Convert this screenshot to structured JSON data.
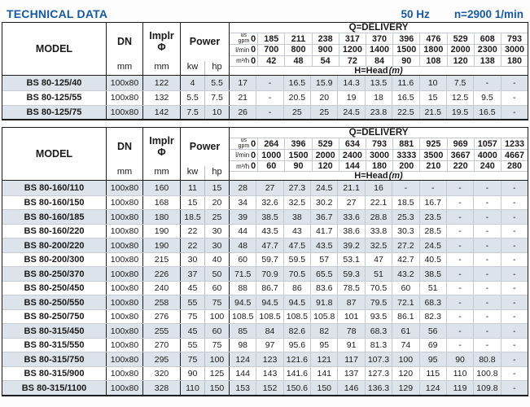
{
  "page": {
    "title": "TECHNICAL DATA",
    "frequency": "50 Hz",
    "speed": "n=2900 1/min"
  },
  "labels": {
    "model": "MODEL",
    "dn": "DN",
    "mm": "mm",
    "implr": "Implr",
    "implr_phi": "Φ",
    "power": "Power",
    "kw": "kw",
    "hp": "hp",
    "q_delivery": "Q=DELIVERY",
    "h_head": "H=Head",
    "h_head_unit": "(m)",
    "gpm_top": "us",
    "gpm_bottom": "gpm",
    "lmin": "l/min",
    "m3h": "m³/h"
  },
  "colors": {
    "accent_blue": "#1459a8",
    "row_shade": "#dce3ea",
    "border_dark": "#1c1c1c",
    "border_light": "#c3c9cf"
  },
  "tables": [
    {
      "gpm": [
        "0",
        "185",
        "211",
        "238",
        "317",
        "370",
        "396",
        "476",
        "529",
        "608",
        "793"
      ],
      "lmin": [
        "0",
        "700",
        "800",
        "900",
        "1200",
        "1400",
        "1500",
        "1800",
        "2000",
        "2300",
        "3000"
      ],
      "m3h": [
        "0",
        "42",
        "48",
        "54",
        "72",
        "84",
        "90",
        "108",
        "120",
        "138",
        "180"
      ],
      "rows": [
        {
          "model": "BS 80-125/40",
          "dn": "100x80",
          "implr": "122",
          "kw": "4",
          "hp": "5.5",
          "head": [
            "17",
            "-",
            "16.5",
            "15.9",
            "14.3",
            "13.5",
            "11.6",
            "10",
            "7.5",
            "-",
            "-"
          ]
        },
        {
          "model": "BS 80-125/55",
          "dn": "100x80",
          "implr": "132",
          "kw": "5.5",
          "hp": "7.5",
          "head": [
            "21",
            "-",
            "20.5",
            "20",
            "19",
            "18",
            "16.5",
            "15",
            "12.5",
            "9.5",
            "-"
          ]
        },
        {
          "model": "BS 80-125/75",
          "dn": "100x80",
          "implr": "142",
          "kw": "7.5",
          "hp": "10",
          "head": [
            "26",
            "-",
            "25",
            "25",
            "24.5",
            "23.8",
            "22.5",
            "21.5",
            "19.5",
            "16.5",
            "-"
          ]
        }
      ]
    },
    {
      "gpm": [
        "0",
        "264",
        "396",
        "529",
        "634",
        "793",
        "881",
        "925",
        "969",
        "1057",
        "1233"
      ],
      "lmin": [
        "0",
        "1000",
        "1500",
        "2000",
        "2400",
        "3000",
        "3333",
        "3500",
        "3667",
        "4000",
        "4667"
      ],
      "m3h": [
        "0",
        "60",
        "90",
        "120",
        "144",
        "180",
        "200",
        "210",
        "220",
        "240",
        "280"
      ],
      "rows": [
        {
          "model": "BS 80-160/110",
          "dn": "100x80",
          "implr": "160",
          "kw": "11",
          "hp": "15",
          "head": [
            "28",
            "27",
            "27.3",
            "24.5",
            "21.1",
            "16",
            "-",
            "-",
            "-",
            "-",
            "-"
          ]
        },
        {
          "model": "BS 80-160/150",
          "dn": "100x80",
          "implr": "168",
          "kw": "15",
          "hp": "20",
          "head": [
            "34",
            "32.6",
            "32.5",
            "30.2",
            "27",
            "22.1",
            "18.5",
            "16.7",
            "-",
            "-",
            "-"
          ]
        },
        {
          "model": "BS 80-160/185",
          "dn": "100x80",
          "implr": "180",
          "kw": "18.5",
          "hp": "25",
          "head": [
            "39",
            "38.5",
            "38",
            "36.7",
            "33.6",
            "28.8",
            "25.3",
            "23.5",
            "-",
            "-",
            "-"
          ]
        },
        {
          "model": "BS 80-160/220",
          "dn": "100x80",
          "implr": "190",
          "kw": "22",
          "hp": "30",
          "head": [
            "44",
            "43.5",
            "43",
            "41.7",
            "38.6",
            "33.8",
            "30.3",
            "28.5",
            "-",
            "-",
            "-"
          ]
        },
        {
          "model": "BS 80-200/220",
          "dn": "100x80",
          "implr": "190",
          "kw": "22",
          "hp": "30",
          "head": [
            "48",
            "47.7",
            "47.5",
            "43.5",
            "39.2",
            "32.5",
            "27.2",
            "24.5",
            "-",
            "-",
            "-"
          ]
        },
        {
          "model": "BS 80-200/300",
          "dn": "100x80",
          "implr": "215",
          "kw": "30",
          "hp": "40",
          "head": [
            "60",
            "59.7",
            "59.5",
            "57",
            "53.1",
            "47",
            "42.7",
            "40.5",
            "-",
            "-",
            "-"
          ]
        },
        {
          "model": "BS 80-250/370",
          "dn": "100x80",
          "implr": "226",
          "kw": "37",
          "hp": "50",
          "head": [
            "71.5",
            "70.9",
            "70.5",
            "65.5",
            "59.3",
            "51",
            "43.2",
            "38.5",
            "-",
            "-",
            "-"
          ]
        },
        {
          "model": "BS 80-250/450",
          "dn": "100x80",
          "implr": "240",
          "kw": "45",
          "hp": "60",
          "head": [
            "88",
            "86.7",
            "86",
            "83.6",
            "78.5",
            "70.5",
            "60",
            "51",
            "-",
            "-",
            "-"
          ]
        },
        {
          "model": "BS 80-250/550",
          "dn": "100x80",
          "implr": "258",
          "kw": "55",
          "hp": "75",
          "head": [
            "94.5",
            "94.5",
            "94.5",
            "91.8",
            "87",
            "79.5",
            "72.1",
            "68.3",
            "-",
            "-",
            "-"
          ]
        },
        {
          "model": "BS 80-250/750",
          "dn": "100x80",
          "implr": "276",
          "kw": "75",
          "hp": "100",
          "head": [
            "108.5",
            "108.5",
            "108.5",
            "105.8",
            "101",
            "93.5",
            "86.1",
            "82.3",
            "-",
            "-",
            "-"
          ]
        },
        {
          "model": "BS 80-315/450",
          "dn": "100x80",
          "implr": "255",
          "kw": "45",
          "hp": "60",
          "head": [
            "85",
            "84",
            "82.6",
            "82",
            "78",
            "68.3",
            "61",
            "56",
            "-",
            "-",
            "-"
          ]
        },
        {
          "model": "BS 80-315/550",
          "dn": "100x80",
          "implr": "270",
          "kw": "55",
          "hp": "75",
          "head": [
            "98",
            "97",
            "95.6",
            "95",
            "91",
            "81.3",
            "74",
            "69",
            "-",
            "-",
            "-"
          ]
        },
        {
          "model": "BS 80-315/750",
          "dn": "100x80",
          "implr": "295",
          "kw": "75",
          "hp": "100",
          "head": [
            "124",
            "123",
            "121.6",
            "121",
            "117",
            "107.3",
            "100",
            "95",
            "90",
            "80.8",
            "-"
          ]
        },
        {
          "model": "BS 80-315/900",
          "dn": "100x80",
          "implr": "320",
          "kw": "90",
          "hp": "125",
          "head": [
            "144",
            "143",
            "141.6",
            "141",
            "137",
            "127.3",
            "120",
            "115",
            "110",
            "100.8",
            "-"
          ]
        },
        {
          "model": "BS 80-315/1100",
          "dn": "100x80",
          "implr": "328",
          "kw": "110",
          "hp": "150",
          "head": [
            "153",
            "152",
            "150.6",
            "150",
            "146",
            "136.3",
            "129",
            "124",
            "119",
            "109.8",
            "-"
          ]
        }
      ]
    }
  ]
}
